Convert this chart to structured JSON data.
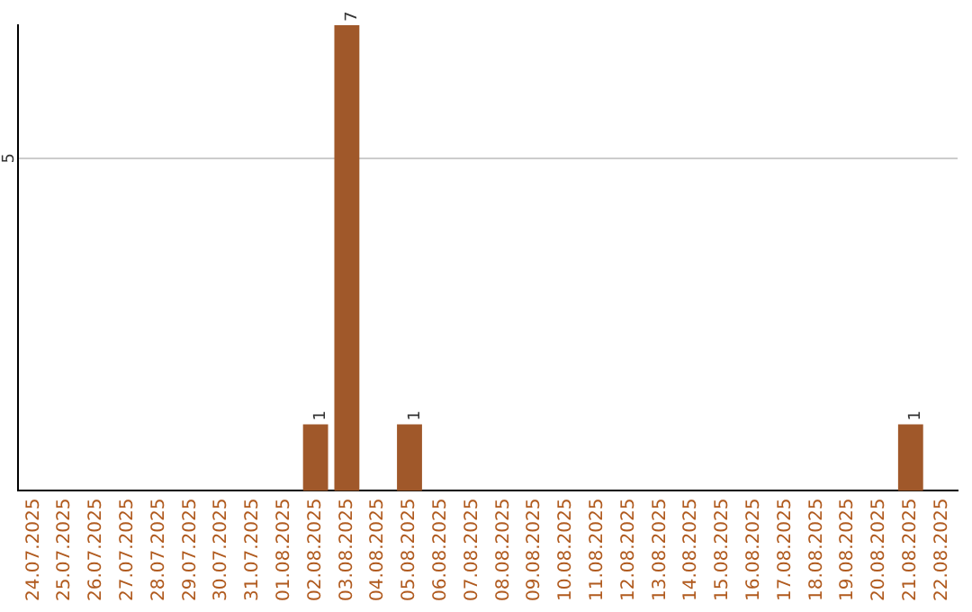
{
  "chart_data": {
    "type": "bar",
    "categories": [
      "24.07.2025",
      "25.07.2025",
      "26.07.2025",
      "27.07.2025",
      "28.07.2025",
      "29.07.2025",
      "30.07.2025",
      "31.07.2025",
      "01.08.2025",
      "02.08.2025",
      "03.08.2025",
      "04.08.2025",
      "05.08.2025",
      "06.08.2025",
      "07.08.2025",
      "08.08.2025",
      "09.08.2025",
      "10.08.2025",
      "11.08.2025",
      "12.08.2025",
      "13.08.2025",
      "14.08.2025",
      "15.08.2025",
      "16.08.2025",
      "17.08.2025",
      "18.08.2025",
      "19.08.2025",
      "20.08.2025",
      "21.08.2025",
      "22.08.2025"
    ],
    "values": [
      0,
      0,
      0,
      0,
      0,
      0,
      0,
      0,
      0,
      1,
      7,
      0,
      1,
      0,
      0,
      0,
      0,
      0,
      0,
      0,
      0,
      0,
      0,
      0,
      0,
      0,
      0,
      0,
      1,
      0
    ],
    "value_labels": [
      null,
      null,
      null,
      null,
      null,
      null,
      null,
      null,
      null,
      "1",
      "7",
      null,
      "1",
      null,
      null,
      null,
      null,
      null,
      null,
      null,
      null,
      null,
      null,
      null,
      null,
      null,
      null,
      null,
      "1",
      null
    ],
    "color": "#a0582a",
    "ylim": [
      0,
      7
    ],
    "yticks": [
      5
    ],
    "grid": "y",
    "legend": false
  }
}
